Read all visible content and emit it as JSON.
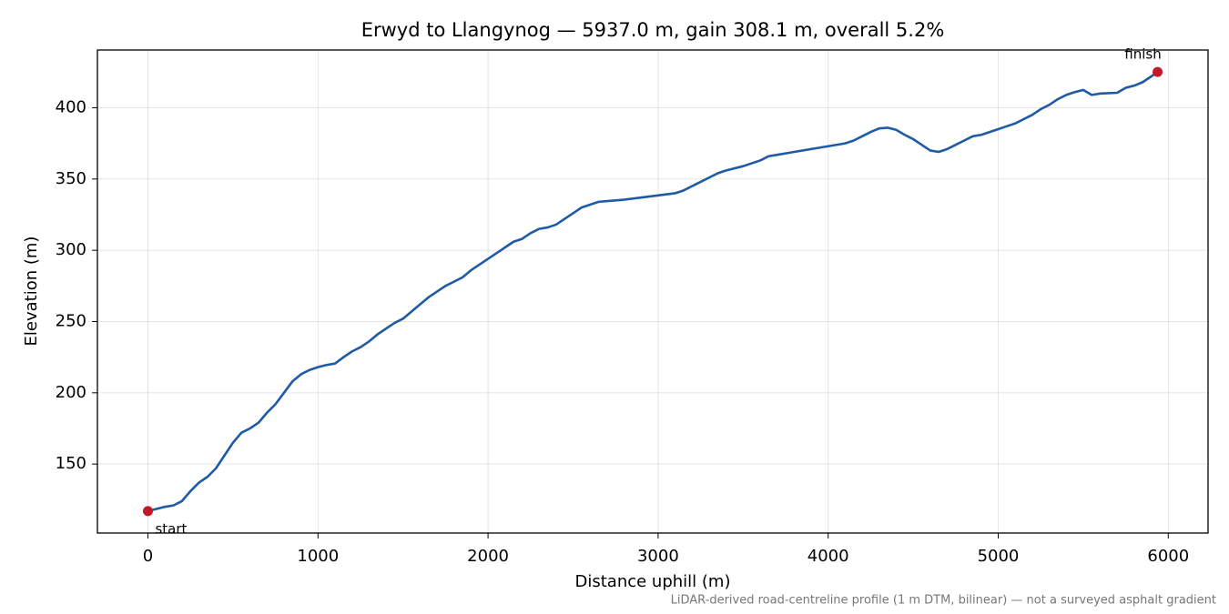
{
  "chart_data": {
    "type": "line",
    "title": "Erwyd to Llangynog — 5937.0 m, gain 308.1 m, overall 5.2%",
    "x_label": "Distance uphill (m)",
    "y_label": "Elevation (m)",
    "footnote": "LiDAR-derived road-centreline profile (1 m DTM, bilinear) — not a surveyed asphalt gradient",
    "x": [
      0,
      100,
      150,
      200,
      250,
      300,
      350,
      400,
      450,
      500,
      550,
      600,
      650,
      700,
      750,
      800,
      850,
      900,
      950,
      1000,
      1050,
      1100,
      1150,
      1200,
      1250,
      1300,
      1350,
      1400,
      1450,
      1500,
      1550,
      1600,
      1650,
      1700,
      1750,
      1800,
      1850,
      1900,
      1950,
      2000,
      2050,
      2100,
      2150,
      2200,
      2250,
      2300,
      2350,
      2400,
      2450,
      2500,
      2550,
      2600,
      2650,
      2700,
      2800,
      2900,
      3000,
      3100,
      3150,
      3200,
      3250,
      3300,
      3350,
      3400,
      3500,
      3600,
      3650,
      3700,
      3750,
      3800,
      3900,
      4000,
      4100,
      4150,
      4200,
      4250,
      4300,
      4350,
      4400,
      4450,
      4500,
      4550,
      4600,
      4650,
      4700,
      4750,
      4800,
      4850,
      4900,
      4950,
      5000,
      5050,
      5100,
      5150,
      5200,
      5250,
      5300,
      5350,
      5400,
      5450,
      5500,
      5550,
      5600,
      5700,
      5750,
      5800,
      5850,
      5900,
      5937
    ],
    "series": [
      {
        "color": "#1f5aa6",
        "values": [
          117,
          120,
          121,
          124,
          131,
          137,
          141,
          147,
          156,
          165,
          172,
          175,
          179,
          186,
          192,
          200,
          208,
          213,
          216,
          218,
          219.5,
          220.5,
          225,
          229,
          232,
          236,
          241,
          245,
          249,
          252,
          257,
          262,
          267,
          271,
          275,
          278,
          281,
          286,
          290,
          294,
          298,
          302,
          306,
          308,
          312,
          315,
          316,
          318,
          322,
          326,
          330,
          332,
          334,
          334.5,
          335.5,
          337,
          338.5,
          340,
          342,
          345,
          348,
          351,
          354,
          356,
          359,
          363,
          366,
          367,
          368,
          369,
          371,
          373,
          375,
          377,
          380,
          383,
          385.5,
          386,
          384.5,
          381,
          378,
          374,
          370,
          369,
          371,
          374,
          377,
          380,
          381,
          383,
          385,
          387,
          389,
          392,
          395,
          399,
          402,
          406,
          409,
          411,
          412.5,
          409,
          410,
          410.5,
          414,
          415.5,
          418,
          422,
          425.1
        ]
      }
    ],
    "annotations": [
      {
        "text": "start",
        "x": 0,
        "y": 117
      },
      {
        "text": "finish",
        "x": 5937,
        "y": 425.1
      }
    ],
    "marker_color": "#c0192a",
    "xlim": [
      -297,
      6234
    ],
    "ylim": [
      101.6,
      440.5
    ],
    "xticks": [
      0,
      1000,
      2000,
      3000,
      4000,
      5000,
      6000
    ],
    "yticks": [
      150,
      200,
      250,
      300,
      350,
      400
    ],
    "grid": true
  }
}
